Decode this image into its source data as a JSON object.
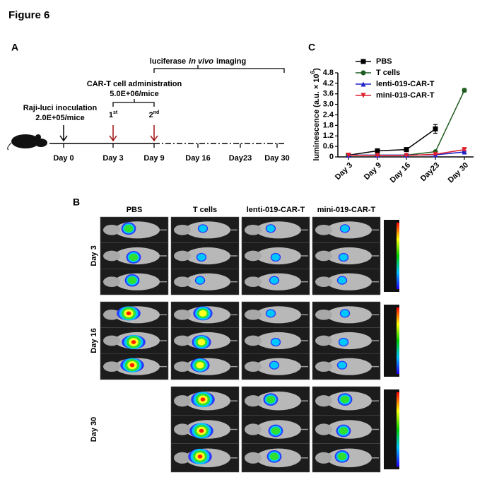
{
  "figure_title": "Figure 6",
  "panel_a": {
    "label": "A",
    "imaging_words": [
      "luciferase",
      "in vivo",
      "imaging"
    ],
    "administration_title": "CAR-T cell administration",
    "administration_dose": "5.0E+06/mice",
    "doses": [
      {
        "number": "1",
        "suffix": "st"
      },
      {
        "number": "2",
        "suffix": "nd"
      }
    ],
    "inoculation_title": "Raji-luci inoculation",
    "inoculation_dose": "2.0E+05/mice",
    "days": [
      "Day 0",
      "Day 3",
      "Day 9",
      "Day 16",
      "Day23",
      "Day 30"
    ]
  },
  "panel_b": {
    "label": "B",
    "columns": [
      "PBS",
      "T cells",
      "lenti-019-CAR-T",
      "mini-019-CAR-T"
    ],
    "rows": [
      "Day 3",
      "Day 16",
      "Day 30"
    ]
  },
  "chart_data": {
    "type": "line",
    "panel_label": "C",
    "y_label": {
      "text": "luminescence (a.u. × 10",
      "exponent": "6",
      "close": ")"
    },
    "categories": [
      "Day 3",
      "Day 9",
      "Day 16",
      "Day23",
      "Day 30"
    ],
    "ylim": [
      0,
      4.8
    ],
    "yticks": [
      0,
      0.6,
      1.2,
      1.8,
      2.4,
      {
        "value": 3,
        "label": "3.0"
      },
      3.6,
      4.2,
      4.8
    ],
    "series": [
      {
        "name": "PBS",
        "color": "#000000",
        "marker": "square",
        "values": [
          0.1,
          0.35,
          0.42,
          1.6,
          null
        ],
        "errors": [
          null,
          0.04,
          0.04,
          0.25,
          null
        ]
      },
      {
        "name": "T cells",
        "color": "#1e5c1e",
        "marker": "circle",
        "values": [
          0.1,
          0.1,
          0.1,
          0.3,
          3.8
        ],
        "errors": [
          null,
          null,
          null,
          0.05,
          0.1
        ]
      },
      {
        "name": "lenti-019-CAR-T",
        "color": "#1f1fc8",
        "marker": "triangle-up",
        "values": [
          0.1,
          0.1,
          0.1,
          0.12,
          0.28
        ],
        "errors": [
          null,
          null,
          null,
          null,
          0.04
        ]
      },
      {
        "name": "mini-019-CAR-T",
        "color": "#e0202e",
        "marker": "triangle-down",
        "values": [
          0.1,
          0.08,
          0.08,
          0.15,
          0.42
        ],
        "errors": [
          null,
          null,
          null,
          null,
          0.05
        ]
      }
    ]
  }
}
